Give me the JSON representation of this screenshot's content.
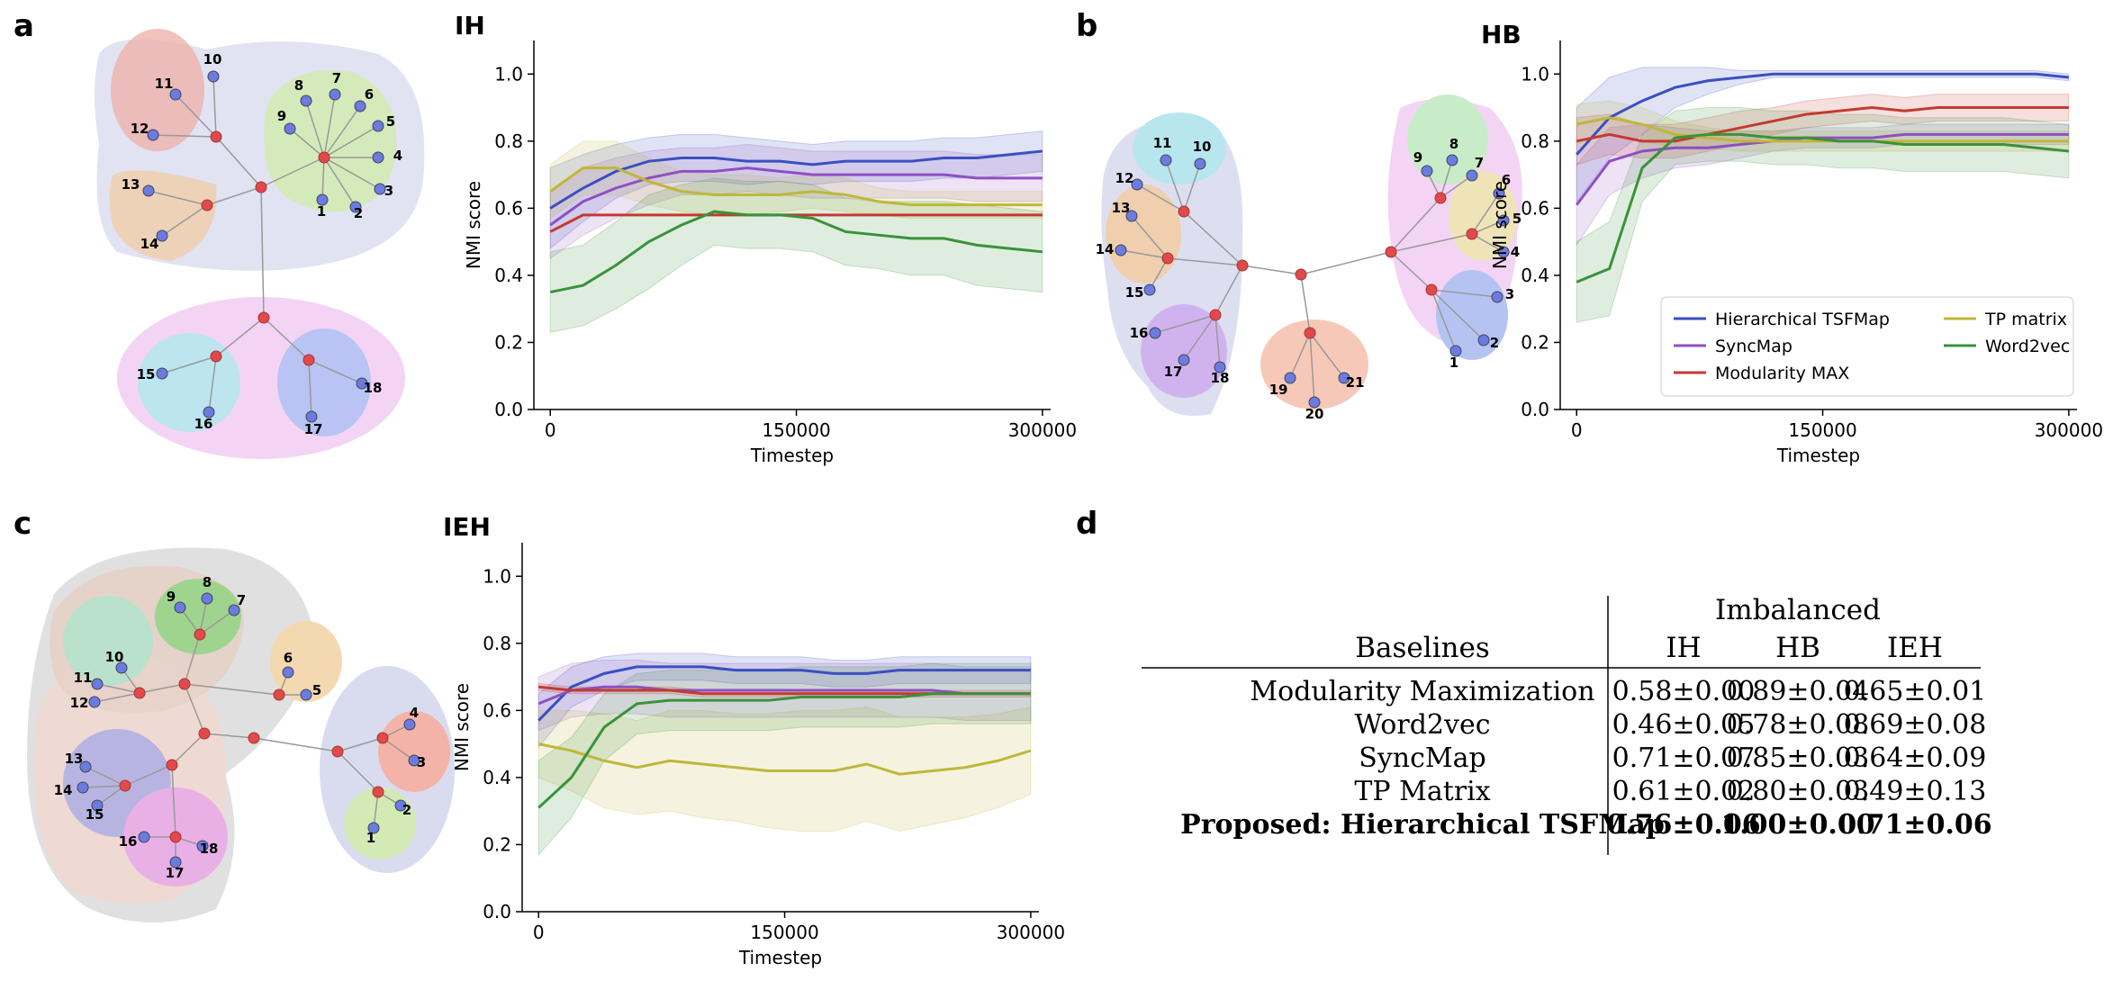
{
  "panels": {
    "a": {
      "letter": "a",
      "graph_title": "IH"
    },
    "b": {
      "letter": "b",
      "graph_title": "HB"
    },
    "c": {
      "letter": "c",
      "graph_title": "IEH"
    },
    "d": {
      "letter": "d"
    }
  },
  "chart_data": [
    {
      "id": "IH",
      "type": "line",
      "title": "IH",
      "xlabel": "Timestep",
      "ylabel": "NMI score",
      "xlim": [
        -10000,
        305000
      ],
      "ylim": [
        0,
        1.1
      ],
      "xticks": [
        0,
        150000,
        300000
      ],
      "yticks": [
        0.0,
        0.2,
        0.4,
        0.6,
        0.8,
        1.0
      ],
      "x": [
        0,
        20000,
        40000,
        60000,
        80000,
        100000,
        120000,
        140000,
        160000,
        180000,
        200000,
        220000,
        240000,
        260000,
        280000,
        300000
      ],
      "series": [
        {
          "name": "Hierarchical TSFMap",
          "color": "#3a4fc1",
          "values": [
            0.6,
            0.66,
            0.71,
            0.74,
            0.75,
            0.75,
            0.74,
            0.74,
            0.73,
            0.74,
            0.74,
            0.74,
            0.75,
            0.75,
            0.76,
            0.77
          ],
          "band": [
            0.12,
            0.1,
            0.08,
            0.07,
            0.07,
            0.07,
            0.07,
            0.06,
            0.06,
            0.06,
            0.06,
            0.06,
            0.06,
            0.06,
            0.06,
            0.06
          ]
        },
        {
          "name": "SyncMap",
          "color": "#8f4fc1",
          "values": [
            0.55,
            0.62,
            0.66,
            0.69,
            0.71,
            0.71,
            0.72,
            0.71,
            0.7,
            0.7,
            0.7,
            0.7,
            0.7,
            0.69,
            0.69,
            0.69
          ],
          "band": [
            0.1,
            0.1,
            0.09,
            0.08,
            0.07,
            0.07,
            0.07,
            0.07,
            0.07,
            0.07,
            0.07,
            0.07,
            0.07,
            0.07,
            0.07,
            0.07
          ]
        },
        {
          "name": "Modularity MAX",
          "color": "#c43a2f",
          "values": [
            0.53,
            0.58,
            0.58,
            0.58,
            0.58,
            0.58,
            0.58,
            0.58,
            0.58,
            0.58,
            0.58,
            0.58,
            0.58,
            0.58,
            0.58,
            0.58
          ],
          "band": [
            0,
            0,
            0,
            0,
            0,
            0,
            0,
            0,
            0,
            0,
            0,
            0,
            0,
            0,
            0,
            0
          ]
        },
        {
          "name": "TP matrix",
          "color": "#bfb73a",
          "values": [
            0.65,
            0.72,
            0.72,
            0.68,
            0.65,
            0.64,
            0.64,
            0.64,
            0.65,
            0.64,
            0.62,
            0.61,
            0.61,
            0.61,
            0.61,
            0.61
          ],
          "band": [
            0.08,
            0.08,
            0.08,
            0.07,
            0.06,
            0.06,
            0.06,
            0.05,
            0.05,
            0.05,
            0.04,
            0.04,
            0.04,
            0.04,
            0.04,
            0.04
          ]
        },
        {
          "name": "Word2vec",
          "color": "#3a923a",
          "values": [
            0.35,
            0.37,
            0.43,
            0.5,
            0.55,
            0.59,
            0.58,
            0.58,
            0.57,
            0.53,
            0.52,
            0.51,
            0.51,
            0.49,
            0.48,
            0.47
          ],
          "band": [
            0.12,
            0.12,
            0.13,
            0.14,
            0.12,
            0.1,
            0.1,
            0.1,
            0.1,
            0.1,
            0.1,
            0.11,
            0.11,
            0.12,
            0.12,
            0.12
          ]
        }
      ]
    },
    {
      "id": "HB",
      "type": "line",
      "title": "HB",
      "xlabel": "Timestep",
      "ylabel": "NMI score",
      "xlim": [
        -10000,
        305000
      ],
      "ylim": [
        0,
        1.1
      ],
      "xticks": [
        0,
        150000,
        300000
      ],
      "yticks": [
        0.0,
        0.2,
        0.4,
        0.6,
        0.8,
        1.0
      ],
      "x": [
        0,
        20000,
        40000,
        60000,
        80000,
        100000,
        120000,
        140000,
        160000,
        180000,
        200000,
        220000,
        240000,
        260000,
        280000,
        300000
      ],
      "legend_position": "lower-right",
      "series": [
        {
          "name": "Hierarchical TSFMap",
          "color": "#3a4fc1",
          "values": [
            0.76,
            0.87,
            0.92,
            0.96,
            0.98,
            0.99,
            1.0,
            1.0,
            1.0,
            1.0,
            1.0,
            1.0,
            1.0,
            1.0,
            1.0,
            0.99
          ],
          "band": [
            0.14,
            0.12,
            0.1,
            0.06,
            0.04,
            0.02,
            0.01,
            0.01,
            0.01,
            0.01,
            0.01,
            0.01,
            0.01,
            0.01,
            0.01,
            0.01
          ]
        },
        {
          "name": "SyncMap",
          "color": "#8f4fc1",
          "values": [
            0.61,
            0.74,
            0.77,
            0.78,
            0.78,
            0.79,
            0.8,
            0.81,
            0.81,
            0.81,
            0.82,
            0.82,
            0.82,
            0.82,
            0.82,
            0.82
          ],
          "band": [
            0.12,
            0.1,
            0.08,
            0.06,
            0.05,
            0.04,
            0.03,
            0.03,
            0.03,
            0.03,
            0.03,
            0.03,
            0.03,
            0.03,
            0.03,
            0.03
          ]
        },
        {
          "name": "Modularity MAX",
          "color": "#c43a2f",
          "values": [
            0.8,
            0.82,
            0.8,
            0.8,
            0.82,
            0.84,
            0.86,
            0.88,
            0.89,
            0.9,
            0.89,
            0.9,
            0.9,
            0.9,
            0.9,
            0.9
          ],
          "band": [
            0.07,
            0.06,
            0.05,
            0.05,
            0.05,
            0.05,
            0.04,
            0.04,
            0.04,
            0.04,
            0.04,
            0.04,
            0.04,
            0.04,
            0.04,
            0.04
          ]
        },
        {
          "name": "TP matrix",
          "color": "#bfb73a",
          "values": [
            0.85,
            0.87,
            0.85,
            0.82,
            0.81,
            0.8,
            0.8,
            0.8,
            0.8,
            0.8,
            0.8,
            0.8,
            0.8,
            0.8,
            0.8,
            0.8
          ],
          "band": [
            0.06,
            0.05,
            0.05,
            0.04,
            0.03,
            0.03,
            0.03,
            0.03,
            0.03,
            0.03,
            0.03,
            0.03,
            0.03,
            0.03,
            0.03,
            0.03
          ]
        },
        {
          "name": "Word2vec",
          "color": "#3a923a",
          "values": [
            0.38,
            0.42,
            0.72,
            0.81,
            0.82,
            0.82,
            0.81,
            0.81,
            0.8,
            0.8,
            0.79,
            0.79,
            0.79,
            0.79,
            0.78,
            0.77
          ],
          "band": [
            0.12,
            0.14,
            0.1,
            0.08,
            0.08,
            0.08,
            0.08,
            0.08,
            0.08,
            0.08,
            0.08,
            0.08,
            0.08,
            0.08,
            0.08,
            0.08
          ]
        }
      ]
    },
    {
      "id": "IEH",
      "type": "line",
      "title": "IEH",
      "xlabel": "Timestep",
      "ylabel": "NMI score",
      "xlim": [
        -10000,
        305000
      ],
      "ylim": [
        0,
        1.1
      ],
      "xticks": [
        0,
        150000,
        300000
      ],
      "yticks": [
        0.0,
        0.2,
        0.4,
        0.6,
        0.8,
        1.0
      ],
      "x": [
        0,
        20000,
        40000,
        60000,
        80000,
        100000,
        120000,
        140000,
        160000,
        180000,
        200000,
        220000,
        240000,
        260000,
        280000,
        300000
      ],
      "series": [
        {
          "name": "Hierarchical TSFMap",
          "color": "#3a4fc1",
          "values": [
            0.57,
            0.67,
            0.71,
            0.73,
            0.73,
            0.73,
            0.72,
            0.72,
            0.72,
            0.71,
            0.71,
            0.72,
            0.72,
            0.72,
            0.72,
            0.72
          ],
          "band": [
            0.08,
            0.06,
            0.05,
            0.04,
            0.04,
            0.04,
            0.04,
            0.04,
            0.04,
            0.04,
            0.04,
            0.04,
            0.04,
            0.04,
            0.04,
            0.04
          ]
        },
        {
          "name": "SyncMap",
          "color": "#8f4fc1",
          "values": [
            0.62,
            0.66,
            0.67,
            0.67,
            0.66,
            0.66,
            0.66,
            0.66,
            0.66,
            0.66,
            0.66,
            0.66,
            0.66,
            0.65,
            0.65,
            0.65
          ],
          "band": [
            0.08,
            0.08,
            0.08,
            0.08,
            0.08,
            0.08,
            0.08,
            0.08,
            0.08,
            0.08,
            0.08,
            0.08,
            0.08,
            0.08,
            0.08,
            0.08
          ]
        },
        {
          "name": "Modularity MAX",
          "color": "#c43a2f",
          "values": [
            0.67,
            0.66,
            0.66,
            0.66,
            0.66,
            0.65,
            0.65,
            0.65,
            0.65,
            0.65,
            0.65,
            0.65,
            0.65,
            0.65,
            0.65,
            0.65
          ],
          "band": [
            0.01,
            0.01,
            0.01,
            0.01,
            0.01,
            0.01,
            0.01,
            0.01,
            0.01,
            0.01,
            0.01,
            0.01,
            0.01,
            0.01,
            0.01,
            0.01
          ]
        },
        {
          "name": "TP matrix",
          "color": "#bfb73a",
          "values": [
            0.5,
            0.48,
            0.45,
            0.43,
            0.45,
            0.44,
            0.43,
            0.42,
            0.42,
            0.42,
            0.44,
            0.41,
            0.42,
            0.43,
            0.45,
            0.48
          ],
          "band": [
            0.1,
            0.12,
            0.14,
            0.14,
            0.15,
            0.16,
            0.16,
            0.17,
            0.18,
            0.18,
            0.17,
            0.17,
            0.16,
            0.15,
            0.14,
            0.13
          ]
        },
        {
          "name": "Word2vec",
          "color": "#3a923a",
          "values": [
            0.31,
            0.4,
            0.55,
            0.62,
            0.63,
            0.63,
            0.63,
            0.63,
            0.64,
            0.64,
            0.64,
            0.64,
            0.65,
            0.65,
            0.65,
            0.65
          ],
          "band": [
            0.14,
            0.12,
            0.1,
            0.09,
            0.09,
            0.09,
            0.09,
            0.09,
            0.09,
            0.09,
            0.09,
            0.09,
            0.09,
            0.09,
            0.09,
            0.09
          ]
        }
      ]
    },
    {
      "id": "results-table",
      "type": "table",
      "group_header": "Imbalanced",
      "columns": [
        "Baselines",
        "IH",
        "HB",
        "IEH"
      ],
      "rows": [
        [
          "Modularity Maximization",
          "0.58±0.00",
          "0.89±0.04",
          "0.65±0.01"
        ],
        [
          "Word2vec",
          "0.46±0.05",
          "0.78±0.08",
          "0.69±0.08"
        ],
        [
          "SyncMap",
          "0.71±0.07",
          "0.85±0.03",
          "0.64±0.09"
        ],
        [
          "TP Matrix",
          "0.61±0.02",
          "0.80±0.03",
          "0.49±0.13"
        ],
        [
          "Proposed: Hierarchical TSFMap",
          "0.76±0.06",
          "1.00±0.00",
          "0.71±0.06"
        ]
      ],
      "bold_row": 4
    }
  ],
  "graphs": {
    "a": {
      "nodes": [
        "1",
        "2",
        "3",
        "4",
        "5",
        "6",
        "7",
        "8",
        "9",
        "10",
        "11",
        "12",
        "13",
        "14",
        "15",
        "16",
        "17",
        "18"
      ]
    },
    "b": {
      "nodes": [
        "1",
        "2",
        "3",
        "4",
        "5",
        "6",
        "7",
        "8",
        "9",
        "10",
        "11",
        "12",
        "13",
        "14",
        "15",
        "16",
        "17",
        "18",
        "19",
        "20",
        "21"
      ]
    },
    "c": {
      "nodes": [
        "1",
        "2",
        "3",
        "4",
        "5",
        "6",
        "7",
        "8",
        "9",
        "10",
        "11",
        "12",
        "13",
        "14",
        "15",
        "16",
        "17",
        "18"
      ]
    }
  },
  "colors": {
    "hub": "#e04a4a",
    "leaf": "#6b7be0",
    "edge": "#999999"
  }
}
